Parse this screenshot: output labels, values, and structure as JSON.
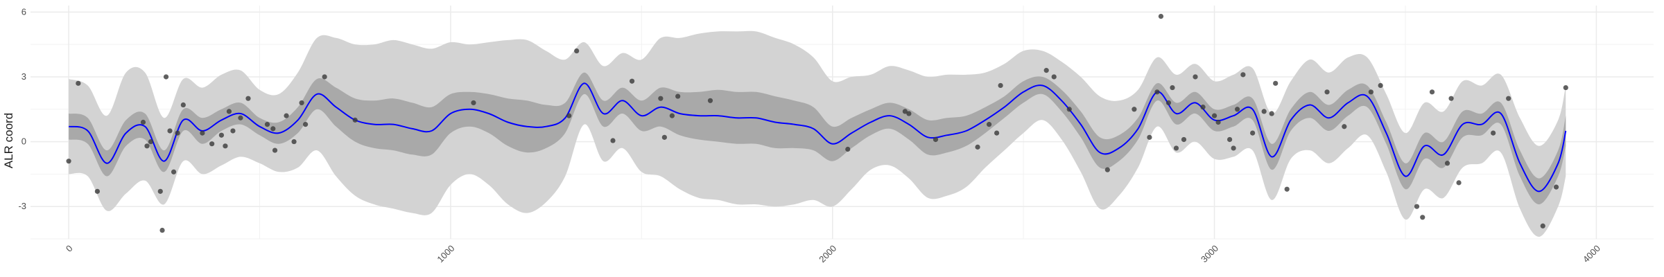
{
  "chart_data": {
    "type": "line",
    "title": "",
    "xlabel": "",
    "ylabel": "ALR coord",
    "xlim": [
      -100,
      4150
    ],
    "ylim": [
      -4.5,
      6.3
    ],
    "grid": true,
    "legend": "none",
    "x_ticks": [
      {
        "value": 0,
        "label": "0"
      },
      {
        "value": 1000,
        "label": "1000"
      },
      {
        "value": 2000,
        "label": "2000"
      },
      {
        "value": 3000,
        "label": "3000"
      },
      {
        "value": 4000,
        "label": "4000"
      }
    ],
    "y_ticks": [
      {
        "value": -3,
        "label": "-3"
      },
      {
        "value": 0,
        "label": "0"
      },
      {
        "value": 3,
        "label": "3"
      },
      {
        "value": 6,
        "label": "6"
      }
    ],
    "colors": {
      "mean_line": "#0000ff",
      "inner_band": "#a9a9a9",
      "outer_band": "#d3d3d3",
      "points": "#3a3a3a",
      "grid": "#ebebeb"
    },
    "series": [
      {
        "type": "line",
        "x": [
          0,
          50,
          100,
          150,
          200,
          250,
          300,
          350,
          400,
          450,
          500,
          550,
          600,
          650,
          700,
          750,
          800,
          850,
          900,
          950,
          1000,
          1050,
          1100,
          1150,
          1200,
          1250,
          1300,
          1350,
          1400,
          1450,
          1500,
          1550,
          1600,
          1650,
          1700,
          1750,
          1800,
          1850,
          1900,
          1950,
          2000,
          2050,
          2100,
          2150,
          2200,
          2250,
          2300,
          2350,
          2400,
          2450,
          2500,
          2550,
          2600,
          2650,
          2700,
          2750,
          2800,
          2850,
          2900,
          2950,
          3000,
          3050,
          3100,
          3150,
          3200,
          3250,
          3300,
          3350,
          3400,
          3450,
          3500,
          3550,
          3600,
          3650,
          3700,
          3750,
          3800,
          3850,
          3900,
          3920
        ],
        "y": [
          0.7,
          0.5,
          -1.0,
          0.4,
          0.7,
          -0.9,
          1.0,
          0.5,
          1.0,
          1.3,
          0.7,
          0.4,
          1.0,
          2.2,
          1.6,
          1.0,
          0.8,
          0.8,
          0.6,
          0.5,
          1.3,
          1.5,
          1.3,
          0.9,
          0.7,
          0.7,
          1.1,
          2.7,
          1.3,
          1.9,
          1.2,
          1.6,
          1.3,
          1.2,
          1.2,
          1.1,
          1.1,
          0.9,
          0.8,
          0.6,
          -0.1,
          0.4,
          0.9,
          1.2,
          0.8,
          0.2,
          0.3,
          0.5,
          1.0,
          1.6,
          2.3,
          2.6,
          1.9,
          0.8,
          -0.5,
          -0.3,
          0.6,
          2.3,
          1.3,
          1.8,
          1.0,
          1.2,
          1.5,
          -0.7,
          1.0,
          1.7,
          1.1,
          1.8,
          2.1,
          0.4,
          -1.6,
          -0.2,
          -0.6,
          0.8,
          0.8,
          1.3,
          -1.0,
          -2.3,
          -1.0,
          0.5
        ],
        "inner_band_width": [
          0.6,
          0.6,
          0.6,
          0.6,
          0.6,
          0.5,
          0.5,
          0.6,
          0.5,
          0.5,
          0.4,
          0.5,
          0.6,
          0.7,
          0.9,
          1.0,
          1.1,
          1.2,
          1.2,
          1.1,
          0.9,
          0.8,
          0.9,
          1.1,
          1.2,
          1.0,
          0.7,
          0.5,
          0.6,
          0.6,
          0.7,
          0.9,
          1.0,
          1.1,
          1.2,
          1.2,
          1.2,
          1.2,
          1.1,
          1.0,
          0.8,
          0.7,
          0.6,
          0.6,
          0.7,
          0.8,
          0.8,
          0.7,
          0.6,
          0.5,
          0.5,
          0.4,
          0.5,
          0.6,
          0.7,
          0.6,
          0.5,
          0.4,
          0.5,
          0.5,
          0.5,
          0.5,
          0.5,
          0.6,
          0.5,
          0.6,
          0.6,
          0.6,
          0.5,
          0.5,
          0.6,
          0.6,
          0.6,
          0.6,
          0.5,
          0.5,
          0.6,
          0.6,
          0.6,
          0.7
        ],
        "outer_band_width": [
          2.2,
          2.1,
          2.2,
          2.8,
          2.5,
          2.0,
          1.9,
          2.0,
          2.1,
          2.0,
          1.7,
          1.8,
          2.2,
          2.6,
          3.2,
          3.5,
          3.7,
          3.9,
          3.9,
          3.8,
          3.3,
          3.0,
          3.3,
          3.8,
          4.0,
          3.5,
          2.7,
          1.9,
          2.2,
          2.2,
          2.6,
          3.2,
          3.5,
          3.8,
          3.9,
          4.0,
          4.0,
          3.9,
          3.7,
          3.3,
          2.9,
          2.6,
          2.2,
          2.3,
          2.5,
          2.8,
          2.8,
          2.6,
          2.2,
          2.0,
          1.9,
          1.6,
          1.8,
          2.2,
          2.6,
          2.2,
          1.8,
          1.6,
          1.8,
          1.8,
          1.8,
          1.9,
          1.9,
          2.0,
          1.8,
          2.1,
          2.1,
          2.1,
          1.8,
          1.8,
          2.0,
          2.0,
          2.0,
          2.0,
          1.8,
          1.8,
          2.1,
          2.1,
          2.0,
          2.1
        ]
      },
      {
        "type": "scatter",
        "points": [
          [
            0,
            -0.9
          ],
          [
            25,
            2.7
          ],
          [
            75,
            -2.3
          ],
          [
            195,
            0.9
          ],
          [
            205,
            -0.2
          ],
          [
            215,
            0
          ],
          [
            240,
            -2.3
          ],
          [
            245,
            -4.1
          ],
          [
            255,
            3.0
          ],
          [
            265,
            0.5
          ],
          [
            275,
            -1.4
          ],
          [
            285,
            0.4
          ],
          [
            300,
            1.7
          ],
          [
            350,
            0.4
          ],
          [
            375,
            -0.1
          ],
          [
            400,
            0.3
          ],
          [
            410,
            -0.2
          ],
          [
            420,
            1.4
          ],
          [
            430,
            0.5
          ],
          [
            450,
            1.1
          ],
          [
            470,
            2.0
          ],
          [
            520,
            0.8
          ],
          [
            535,
            0.6
          ],
          [
            540,
            -0.4
          ],
          [
            570,
            1.2
          ],
          [
            590,
            0
          ],
          [
            610,
            1.8
          ],
          [
            620,
            0.8
          ],
          [
            670,
            3.0
          ],
          [
            750,
            1.0
          ],
          [
            1060,
            1.8
          ],
          [
            1330,
            4.2
          ],
          [
            1310,
            1.2
          ],
          [
            1425,
            0.05
          ],
          [
            1475,
            2.8
          ],
          [
            1550,
            2.0
          ],
          [
            1560,
            0.2
          ],
          [
            1580,
            1.2
          ],
          [
            1595,
            2.1
          ],
          [
            1680,
            1.9
          ],
          [
            2040,
            -0.35
          ],
          [
            2190,
            1.4
          ],
          [
            2200,
            1.3
          ],
          [
            2270,
            0.1
          ],
          [
            2380,
            -0.25
          ],
          [
            2410,
            0.8
          ],
          [
            2430,
            0.4
          ],
          [
            2440,
            2.6
          ],
          [
            2560,
            3.3
          ],
          [
            2580,
            3.0
          ],
          [
            2620,
            1.5
          ],
          [
            2720,
            -1.3
          ],
          [
            2790,
            1.5
          ],
          [
            2830,
            0.2
          ],
          [
            2850,
            2.3
          ],
          [
            2860,
            5.8
          ],
          [
            2880,
            1.8
          ],
          [
            2890,
            2.5
          ],
          [
            2900,
            -0.3
          ],
          [
            2920,
            0.1
          ],
          [
            2950,
            3.0
          ],
          [
            2970,
            1.6
          ],
          [
            3000,
            1.2
          ],
          [
            3010,
            0.9
          ],
          [
            3040,
            0.1
          ],
          [
            3050,
            -0.3
          ],
          [
            3060,
            1.5
          ],
          [
            3075,
            3.1
          ],
          [
            3100,
            0.4
          ],
          [
            3130,
            1.4
          ],
          [
            3150,
            1.3
          ],
          [
            3160,
            2.7
          ],
          [
            3190,
            -2.2
          ],
          [
            3295,
            2.3
          ],
          [
            3340,
            0.7
          ],
          [
            3410,
            2.3
          ],
          [
            3435,
            2.6
          ],
          [
            3530,
            -3.0
          ],
          [
            3545,
            -3.5
          ],
          [
            3570,
            2.3
          ],
          [
            3610,
            -1.0
          ],
          [
            3620,
            2.0
          ],
          [
            3640,
            -1.9
          ],
          [
            3730,
            0.4
          ],
          [
            3770,
            2.0
          ],
          [
            3860,
            -3.9
          ],
          [
            3895,
            -2.1
          ],
          [
            3920,
            2.5
          ]
        ]
      }
    ]
  }
}
